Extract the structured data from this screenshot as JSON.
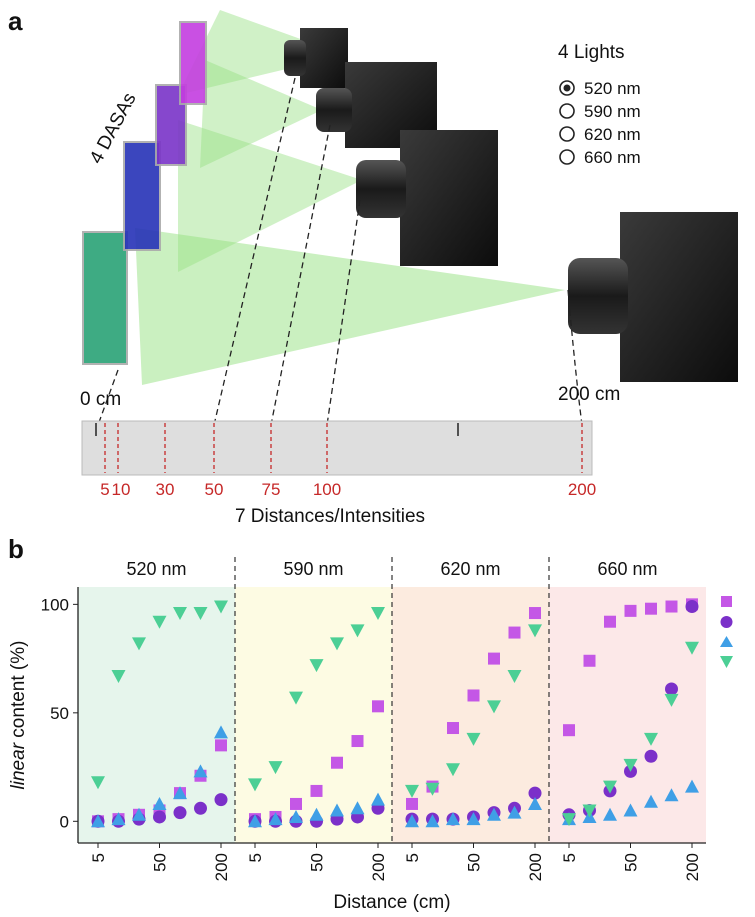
{
  "panel_a": {
    "label": "a",
    "samples_label": "4 DASAs",
    "lights_title": "4 Lights",
    "lights": [
      "520 nm",
      "590 nm",
      "620 nm",
      "660 nm"
    ],
    "start_label": "0 cm",
    "end_label": "200 cm",
    "ruler_marks": [
      "5",
      "10",
      "30",
      "50",
      "75",
      "100",
      "200"
    ],
    "ruler_caption": "7 Distances/Intensities"
  },
  "panel_b": {
    "label": "b",
    "y_label_italic": "linear",
    "y_label": "content (%)",
    "x_label": "Distance (cm)"
  },
  "chart_data": [
    {
      "type": "scatter",
      "title": "520 nm",
      "background": "#e6f5ec",
      "categories": [
        "5",
        null,
        null,
        "50",
        null,
        null,
        "200"
      ],
      "ylim": [
        -10,
        108
      ],
      "yticks": [
        0,
        50,
        100
      ],
      "series": [
        {
          "color": "#c457e6",
          "marker": "square",
          "values": [
            0,
            1,
            3,
            5,
            13,
            21,
            35
          ]
        },
        {
          "color": "#7b30c9",
          "marker": "circle",
          "values": [
            0,
            0,
            1,
            2,
            4,
            6,
            10
          ]
        },
        {
          "color": "#3f9fe6",
          "marker": "triangle",
          "values": [
            0,
            1,
            3,
            8,
            13,
            23,
            41
          ]
        },
        {
          "color": "#4ccf95",
          "marker": "triangle-down",
          "values": [
            18,
            67,
            82,
            92,
            96,
            96,
            99
          ]
        }
      ]
    },
    {
      "type": "scatter",
      "title": "590 nm",
      "background": "#fdfbe3",
      "categories": [
        "5",
        null,
        null,
        "50",
        null,
        null,
        "200"
      ],
      "ylim": [
        -10,
        108
      ],
      "series": [
        {
          "color": "#c457e6",
          "marker": "square",
          "values": [
            1,
            2,
            8,
            14,
            27,
            37,
            53
          ]
        },
        {
          "color": "#7b30c9",
          "marker": "circle",
          "values": [
            0,
            0,
            0,
            0,
            1,
            2,
            6
          ]
        },
        {
          "color": "#3f9fe6",
          "marker": "triangle",
          "values": [
            0,
            1,
            2,
            3,
            5,
            6,
            10
          ]
        },
        {
          "color": "#4ccf95",
          "marker": "triangle-down",
          "values": [
            17,
            25,
            57,
            72,
            82,
            88,
            96
          ]
        }
      ]
    },
    {
      "type": "scatter",
      "title": "620 nm",
      "background": "#fcebdf",
      "categories": [
        "5",
        null,
        null,
        "50",
        null,
        null,
        "200"
      ],
      "ylim": [
        -10,
        108
      ],
      "series": [
        {
          "color": "#c457e6",
          "marker": "square",
          "values": [
            8,
            16,
            43,
            58,
            75,
            87,
            96
          ]
        },
        {
          "color": "#7b30c9",
          "marker": "circle",
          "values": [
            1,
            1,
            1,
            2,
            4,
            6,
            13
          ]
        },
        {
          "color": "#3f9fe6",
          "marker": "triangle",
          "values": [
            0,
            0,
            1,
            1,
            3,
            4,
            8
          ]
        },
        {
          "color": "#4ccf95",
          "marker": "triangle-down",
          "values": [
            14,
            15,
            24,
            38,
            53,
            67,
            88
          ]
        }
      ]
    },
    {
      "type": "scatter",
      "title": "660 nm",
      "background": "#fce8e8",
      "categories": [
        "5",
        null,
        null,
        "50",
        null,
        null,
        "200"
      ],
      "ylim": [
        -10,
        108
      ],
      "series": [
        {
          "color": "#c457e6",
          "marker": "square",
          "values": [
            42,
            74,
            92,
            97,
            98,
            99,
            100
          ]
        },
        {
          "color": "#7b30c9",
          "marker": "circle",
          "values": [
            3,
            5,
            14,
            23,
            30,
            61,
            99
          ]
        },
        {
          "color": "#3f9fe6",
          "marker": "triangle",
          "values": [
            1,
            2,
            3,
            5,
            9,
            12,
            16
          ]
        },
        {
          "color": "#4ccf95",
          "marker": "triangle-down",
          "values": [
            1,
            5,
            16,
            26,
            38,
            56,
            80
          ]
        }
      ]
    }
  ]
}
